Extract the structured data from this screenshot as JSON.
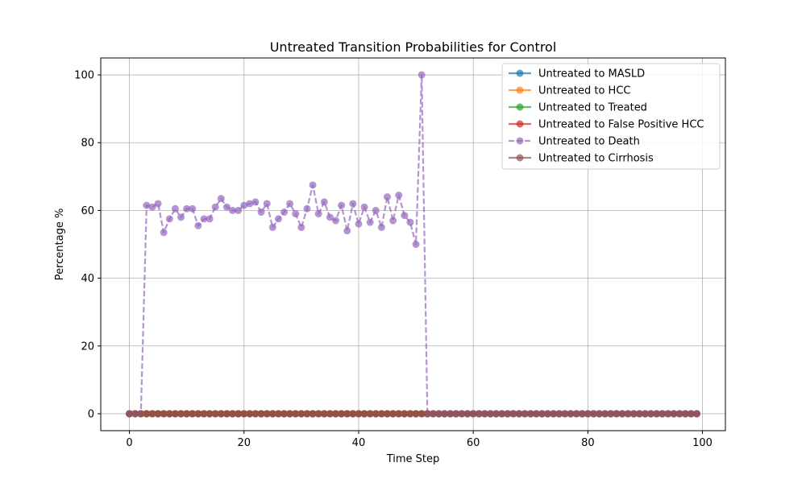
{
  "chart_data": {
    "type": "line",
    "title": "Untreated Transition Probabilities for Control",
    "xlabel": "Time Step",
    "ylabel": "Percentage %",
    "xlim": [
      -5,
      104
    ],
    "ylim": [
      -5,
      105
    ],
    "xticks": [
      0,
      20,
      40,
      60,
      80,
      100
    ],
    "yticks": [
      0,
      20,
      40,
      60,
      80,
      100
    ],
    "grid": true,
    "legend_position": "top-right",
    "x": {
      "start": 0,
      "end": 99,
      "step": 1
    },
    "series": [
      {
        "name": "Untreated to MASLD",
        "color": "#1f77b4",
        "style": "solid",
        "values": "zeros"
      },
      {
        "name": "Untreated to HCC",
        "color": "#ff7f0e",
        "style": "solid",
        "values": "zeros"
      },
      {
        "name": "Untreated to Treated",
        "color": "#2ca02c",
        "style": "solid",
        "values": "zeros"
      },
      {
        "name": "Untreated to False Positive HCC",
        "color": "#d62728",
        "style": "solid",
        "values": "zeros"
      },
      {
        "name": "Untreated to Death",
        "color": "#9467bd",
        "style": "dashed",
        "values": [
          0,
          0,
          0,
          61.5,
          61,
          62,
          53.5,
          57.5,
          60.5,
          58,
          60.5,
          60.5,
          55.5,
          57.5,
          57.5,
          61,
          63.5,
          61,
          60,
          60,
          61.5,
          62,
          62.5,
          59.5,
          62,
          55,
          57.5,
          59.5,
          62,
          59,
          55,
          60.5,
          67.5,
          59,
          62.5,
          58,
          57,
          61.5,
          54,
          62,
          56,
          61,
          56.5,
          60,
          55,
          64,
          57,
          64.5,
          58.5,
          56.5,
          50,
          100,
          0,
          0,
          0,
          0,
          0,
          0,
          0,
          0,
          0,
          0,
          0,
          0,
          0,
          0,
          0,
          0,
          0,
          0,
          0,
          0,
          0,
          0,
          0,
          0,
          0,
          0,
          0,
          0,
          0,
          0,
          0,
          0,
          0,
          0,
          0,
          0,
          0,
          0,
          0,
          0,
          0,
          0,
          0,
          0,
          0,
          0,
          0,
          0
        ]
      },
      {
        "name": "Untreated to Cirrhosis",
        "color": "#8c564b",
        "style": "solid",
        "values": "zeros"
      }
    ],
    "grid_color": "#b0b0b0"
  }
}
